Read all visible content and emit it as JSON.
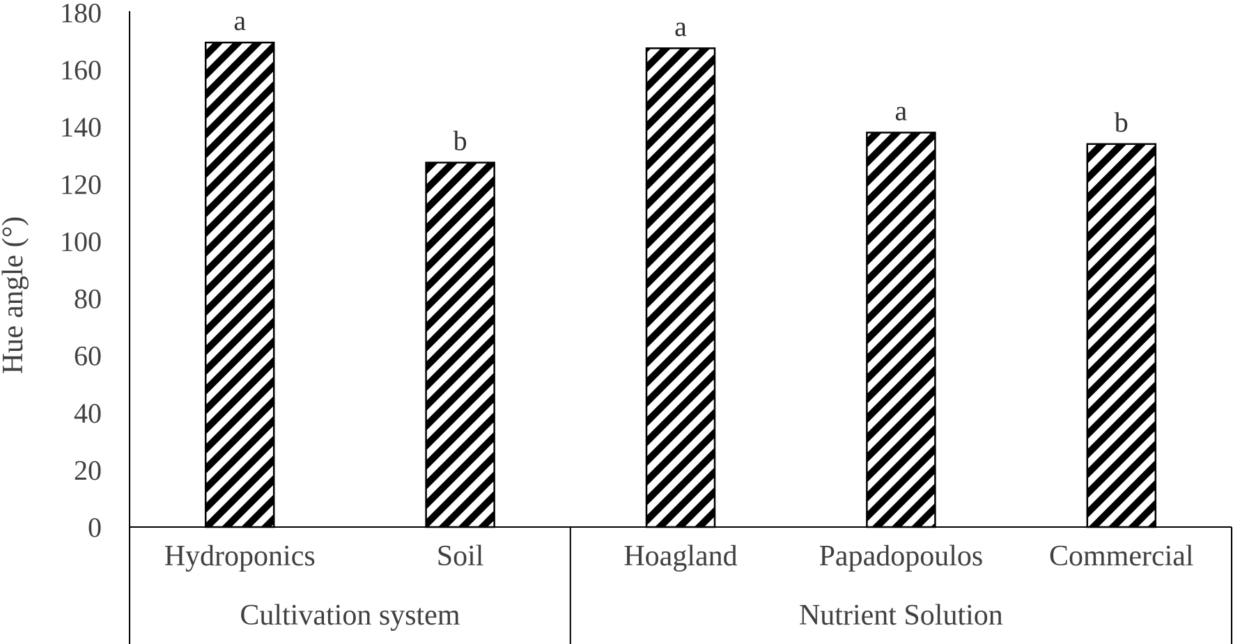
{
  "chart_data": {
    "type": "bar",
    "ylabel": "Hue angle (°)",
    "xlabel": "",
    "title": "",
    "ylim": [
      0,
      180
    ],
    "ytick_step": 20,
    "grid": false,
    "legend": "none",
    "bar_pattern": "diagonal-hatch",
    "bar_color": "#000000",
    "groups": [
      {
        "name": "Cultivation system",
        "categories": [
          "Hydroponics",
          "Soil"
        ],
        "values": [
          169.5,
          127.5
        ],
        "letters": [
          "a",
          "b"
        ]
      },
      {
        "name": "Nutrient Solution",
        "categories": [
          "Hoagland",
          "Papadopoulos",
          "Commercial"
        ],
        "values": [
          167.5,
          138,
          134
        ],
        "letters": [
          "a",
          "a",
          "b"
        ]
      }
    ]
  }
}
